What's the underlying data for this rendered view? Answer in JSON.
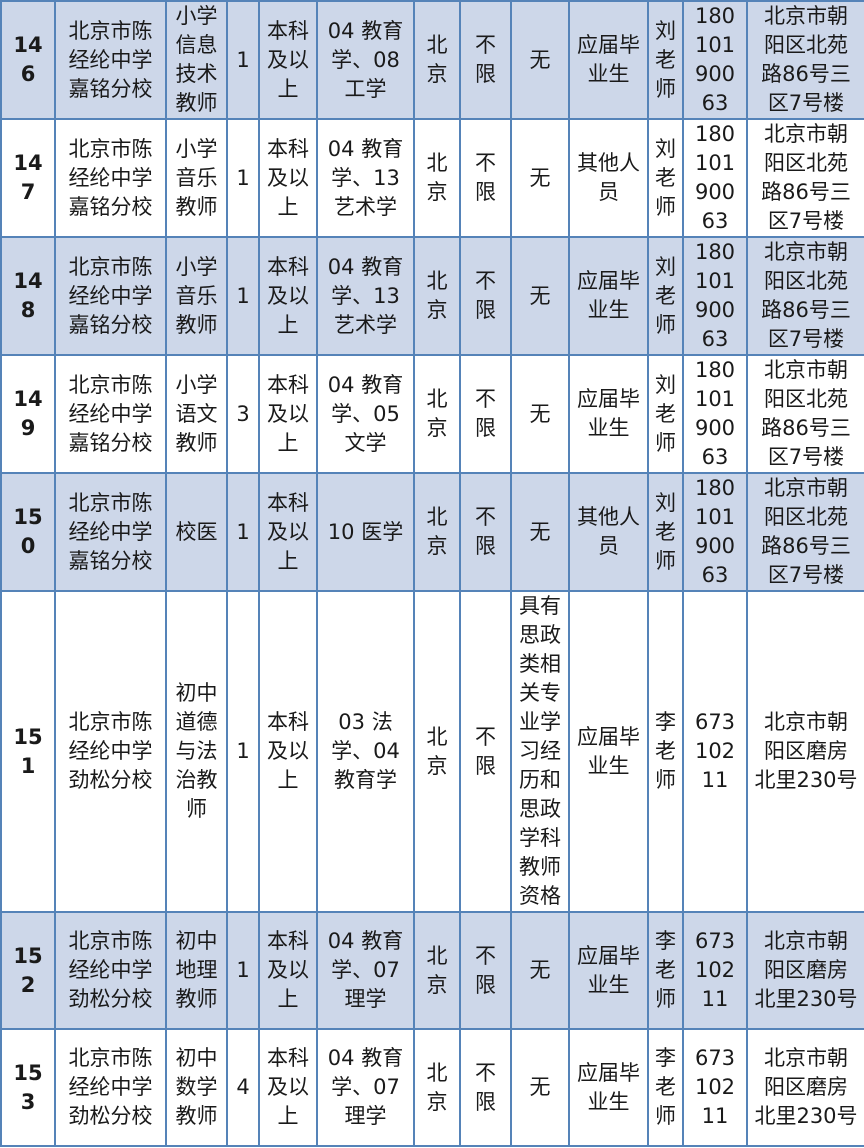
{
  "colors": {
    "row_shade": "#cdd7e9",
    "border": "#5583b8",
    "text": "#1a1a1a"
  },
  "table": {
    "column_keys": [
      "id",
      "school",
      "position",
      "count",
      "education",
      "major",
      "city",
      "household",
      "requirement",
      "category",
      "contact",
      "phone",
      "address"
    ],
    "rows": [
      {
        "id": "146",
        "school": "北京市陈经纶中学嘉铭分校",
        "position": "小学信息技术教师",
        "count": "1",
        "education": "本科及以上",
        "major": "04 教育学、08 工学",
        "city": "北京",
        "household": "不限",
        "requirement": "无",
        "category": "应届毕业生",
        "contact": "刘老师",
        "phone": "18010190063",
        "address": "北京市朝阳区北苑路86号三区7号楼",
        "shaded": true
      },
      {
        "id": "147",
        "school": "北京市陈经纶中学嘉铭分校",
        "position": "小学音乐教师",
        "count": "1",
        "education": "本科及以上",
        "major": "04 教育学、13 艺术学",
        "city": "北京",
        "household": "不限",
        "requirement": "无",
        "category": "其他人员",
        "contact": "刘老师",
        "phone": "18010190063",
        "address": "北京市朝阳区北苑路86号三区7号楼",
        "shaded": false
      },
      {
        "id": "148",
        "school": "北京市陈经纶中学嘉铭分校",
        "position": "小学音乐教师",
        "count": "1",
        "education": "本科及以上",
        "major": "04 教育学、13 艺术学",
        "city": "北京",
        "household": "不限",
        "requirement": "无",
        "category": "应届毕业生",
        "contact": "刘老师",
        "phone": "18010190063",
        "address": "北京市朝阳区北苑路86号三区7号楼",
        "shaded": true
      },
      {
        "id": "149",
        "school": "北京市陈经纶中学嘉铭分校",
        "position": "小学语文教师",
        "count": "3",
        "education": "本科及以上",
        "major": "04 教育学、05 文学",
        "city": "北京",
        "household": "不限",
        "requirement": "无",
        "category": "应届毕业生",
        "contact": "刘老师",
        "phone": "18010190063",
        "address": "北京市朝阳区北苑路86号三区7号楼",
        "shaded": false
      },
      {
        "id": "150",
        "school": "北京市陈经纶中学嘉铭分校",
        "position": "校医",
        "count": "1",
        "education": "本科及以上",
        "major": "10 医学",
        "city": "北京",
        "household": "不限",
        "requirement": "无",
        "category": "其他人员",
        "contact": "刘老师",
        "phone": "18010190063",
        "address": "北京市朝阳区北苑路86号三区7号楼",
        "shaded": true
      },
      {
        "id": "151",
        "school": "北京市陈经纶中学劲松分校",
        "position": "初中道德与法治教师",
        "count": "1",
        "education": "本科及以上",
        "major": "03 法学、04 教育学",
        "city": "北京",
        "household": "不限",
        "requirement": "具有思政类相关专业学习经历和思政学科教师资格",
        "category": "应届毕业生",
        "contact": "李老师",
        "phone": "67310211",
        "address": "北京市朝阳区磨房北里230号",
        "shaded": false
      },
      {
        "id": "152",
        "school": "北京市陈经纶中学劲松分校",
        "position": "初中地理教师",
        "count": "1",
        "education": "本科及以上",
        "major": "04 教育学、07 理学",
        "city": "北京",
        "household": "不限",
        "requirement": "无",
        "category": "应届毕业生",
        "contact": "李老师",
        "phone": "67310211",
        "address": "北京市朝阳区磨房北里230号",
        "shaded": true
      },
      {
        "id": "153",
        "school": "北京市陈经纶中学劲松分校",
        "position": "初中数学教师",
        "count": "4",
        "education": "本科及以上",
        "major": "04 教育学、07 理学",
        "city": "北京",
        "household": "不限",
        "requirement": "无",
        "category": "应届毕业生",
        "contact": "李老师",
        "phone": "67310211",
        "address": "北京市朝阳区磨房北里230号",
        "shaded": false
      }
    ]
  }
}
